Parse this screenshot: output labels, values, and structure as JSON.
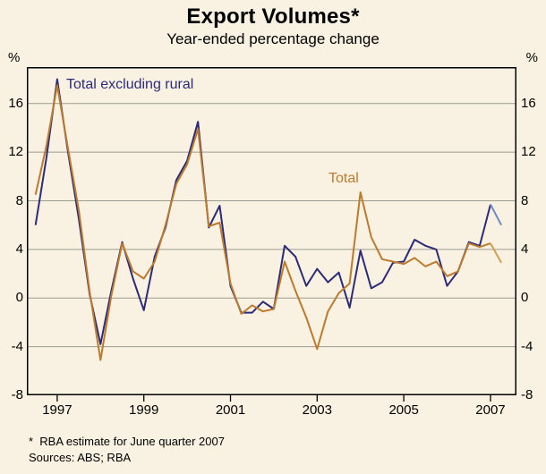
{
  "title": "Export Volumes*",
  "subtitle": "Year-ended percentage change",
  "unit_left": "%",
  "unit_right": "%",
  "footnote": "*  RBA estimate for June quarter 2007",
  "sources": "Sources: ABS; RBA",
  "colors": {
    "background": "#f9f2e2",
    "frame": "#000000",
    "grid": "#9b9b8f",
    "navy": "#2b2b7a",
    "orange": "#bd7a2c"
  },
  "chart_data": {
    "type": "line",
    "title": "Export Volumes*",
    "subtitle": "Year-ended percentage change",
    "xlabel": "",
    "ylabel": "%",
    "grid": true,
    "ylim": [
      -8,
      19
    ],
    "xlim": [
      1996.3,
      2007.6
    ],
    "yticks": [
      -8,
      -4,
      0,
      4,
      8,
      12,
      16
    ],
    "xticks": [
      1997,
      1999,
      2001,
      2003,
      2005,
      2007
    ],
    "x_start": 1996.5,
    "x_step": 0.25,
    "x_unit": "year (quarterly observations)",
    "series": [
      {
        "name": "Total excluding rural",
        "color": "#2b2b7a",
        "estimate_color": "#6a8cc6",
        "estimate_points": 1,
        "values": [
          6.0,
          11.5,
          18.0,
          12.0,
          6.5,
          0.3,
          -3.8,
          0.6,
          4.6,
          1.6,
          -1.0,
          3.4,
          5.8,
          9.7,
          11.3,
          14.5,
          5.8,
          7.6,
          1.0,
          -1.2,
          -1.2,
          -0.3,
          -0.9,
          4.3,
          3.4,
          1.0,
          2.4,
          1.3,
          2.1,
          -0.8,
          3.9,
          0.8,
          1.3,
          2.9,
          3.0,
          4.8,
          4.3,
          4.0,
          1.0,
          2.2,
          4.6,
          4.3,
          7.7,
          6.0
        ]
      },
      {
        "name": "Total",
        "color": "#bd7a2c",
        "estimate_color": "#d39c55",
        "estimate_points": 1,
        "values": [
          8.5,
          12.5,
          17.5,
          12.3,
          7.2,
          0.5,
          -5.1,
          0.2,
          4.5,
          2.2,
          1.6,
          3.0,
          6.0,
          9.4,
          11.0,
          13.9,
          5.9,
          6.2,
          1.2,
          -1.3,
          -0.6,
          -1.1,
          -0.9,
          3.0,
          0.6,
          -1.6,
          -4.2,
          -1.1,
          0.4,
          1.2,
          8.7,
          5.0,
          3.2,
          3.0,
          2.8,
          3.3,
          2.6,
          3.0,
          1.8,
          2.2,
          4.5,
          4.2,
          4.5,
          2.9
        ]
      }
    ],
    "annotations": [
      {
        "text": "Total excluding rural",
        "series": 0
      },
      {
        "text": "Total",
        "series": 1
      }
    ]
  }
}
